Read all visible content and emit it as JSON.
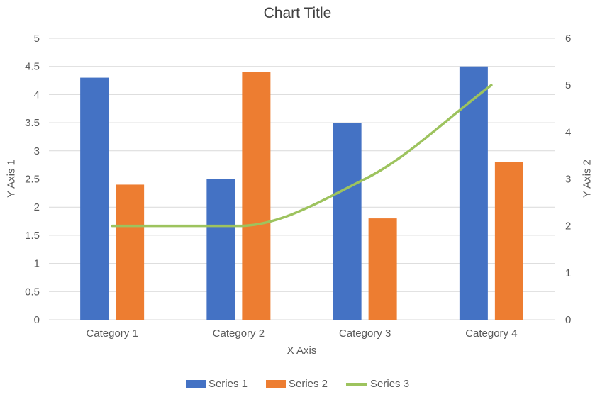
{
  "chart_data": {
    "type": "combo-bar-line",
    "title": "Chart Title",
    "categories": [
      "Category 1",
      "Category 2",
      "Category 3",
      "Category 4"
    ],
    "series": [
      {
        "name": "Series 1",
        "type": "bar",
        "axis": "y1",
        "color": "#4472C4",
        "values": [
          4.3,
          2.5,
          3.5,
          4.5
        ]
      },
      {
        "name": "Series 2",
        "type": "bar",
        "axis": "y1",
        "color": "#ED7D31",
        "values": [
          2.4,
          4.4,
          1.8,
          2.8
        ]
      },
      {
        "name": "Series 3",
        "type": "line",
        "axis": "y2",
        "color": "#9DC35E",
        "values": [
          2,
          2,
          3,
          5
        ]
      }
    ],
    "x_axis": {
      "label": "X Axis"
    },
    "y1_axis": {
      "label": "Y Axis 1",
      "min": 0,
      "max": 5,
      "step": 0.5,
      "ticks": [
        "0",
        "0.5",
        "1",
        "1.5",
        "2",
        "2.5",
        "3",
        "3.5",
        "4",
        "4.5",
        "5"
      ]
    },
    "y2_axis": {
      "label": "Y Axis 2",
      "min": 0,
      "max": 6,
      "step": 1,
      "ticks": [
        "0",
        "1",
        "2",
        "3",
        "4",
        "5",
        "6"
      ]
    },
    "grid": true,
    "legend_position": "bottom",
    "colors": {
      "gridline": "#D9D9D9",
      "axis_line": "#D9D9D9",
      "tick_text": "#595959",
      "title_text": "#404040",
      "background": "#FFFFFF"
    }
  }
}
